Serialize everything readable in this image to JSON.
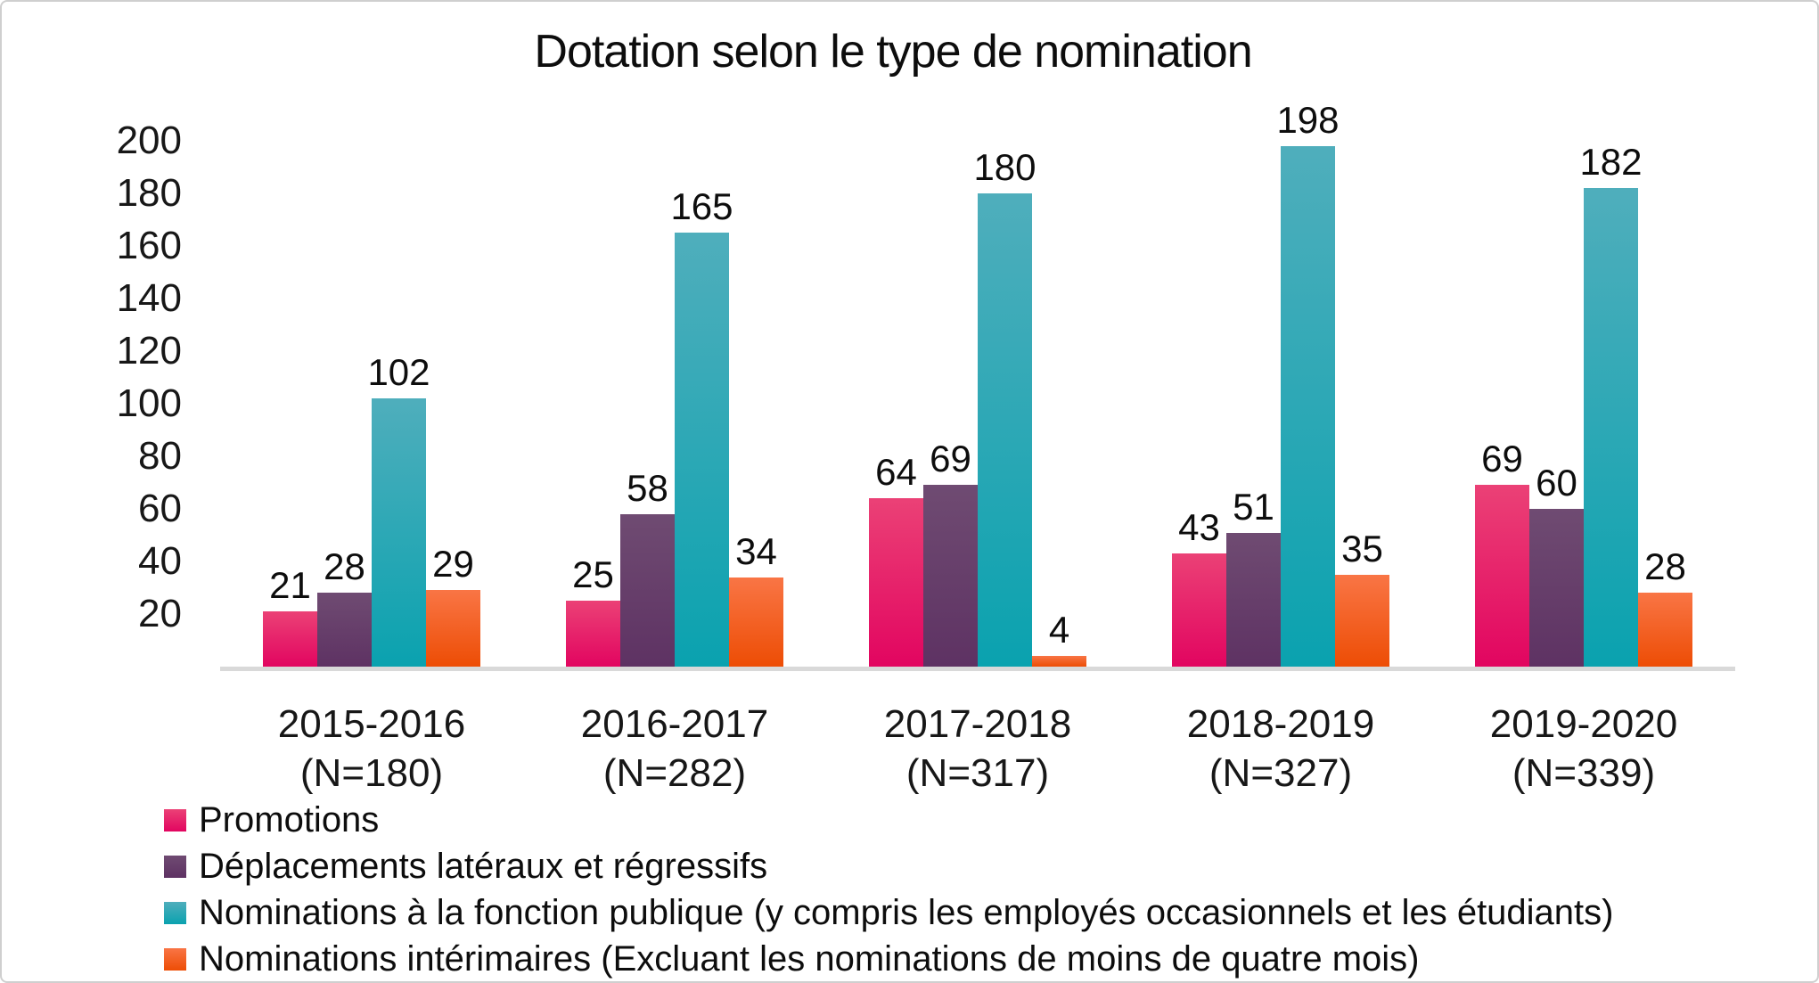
{
  "title": "Dotation selon le type de nomination",
  "chart_data": {
    "type": "bar",
    "title": "Dotation selon le type de nomination",
    "categories": [
      "2015-2016",
      "2016-2017",
      "2017-2018",
      "2018-2019",
      "2019-2020"
    ],
    "category_sublabels": [
      "(N=180)",
      "(N=282)",
      "(N=317)",
      "(N=327)",
      "(N=339)"
    ],
    "series": [
      {
        "name": "Promotions",
        "key": "promotions",
        "values": [
          21,
          25,
          64,
          43,
          69
        ],
        "color_top": "#EB4176",
        "color_bottom": "#E20560"
      },
      {
        "name": "Déplacements latéraux et régressifs",
        "key": "deplacements-lateraux-et-regressifs",
        "values": [
          28,
          58,
          69,
          51,
          60
        ],
        "color_top": "#6F4B72",
        "color_bottom": "#5E3263"
      },
      {
        "name": "Nominations à la fonction publique (y compris les employés occasionnels et les étudiants)",
        "key": "nominations-fonction-publique",
        "values": [
          102,
          165,
          180,
          198,
          182
        ],
        "color_top": "#4FAEBC",
        "color_bottom": "#0AA2AF"
      },
      {
        "name": "Nominations intérimaires (Excluant les nominations de moins de quatre mois)",
        "key": "nominations-interimaires",
        "values": [
          29,
          34,
          4,
          35,
          28
        ],
        "color_top": "#F97545",
        "color_bottom": "#ED4D05"
      }
    ],
    "y_ticks": [
      20,
      40,
      60,
      80,
      100,
      120,
      140,
      160,
      180,
      200
    ],
    "ylim": [
      0,
      200
    ],
    "grid": false,
    "axis_line_color": "#D9D9D9",
    "legend_position": "bottom-left"
  }
}
